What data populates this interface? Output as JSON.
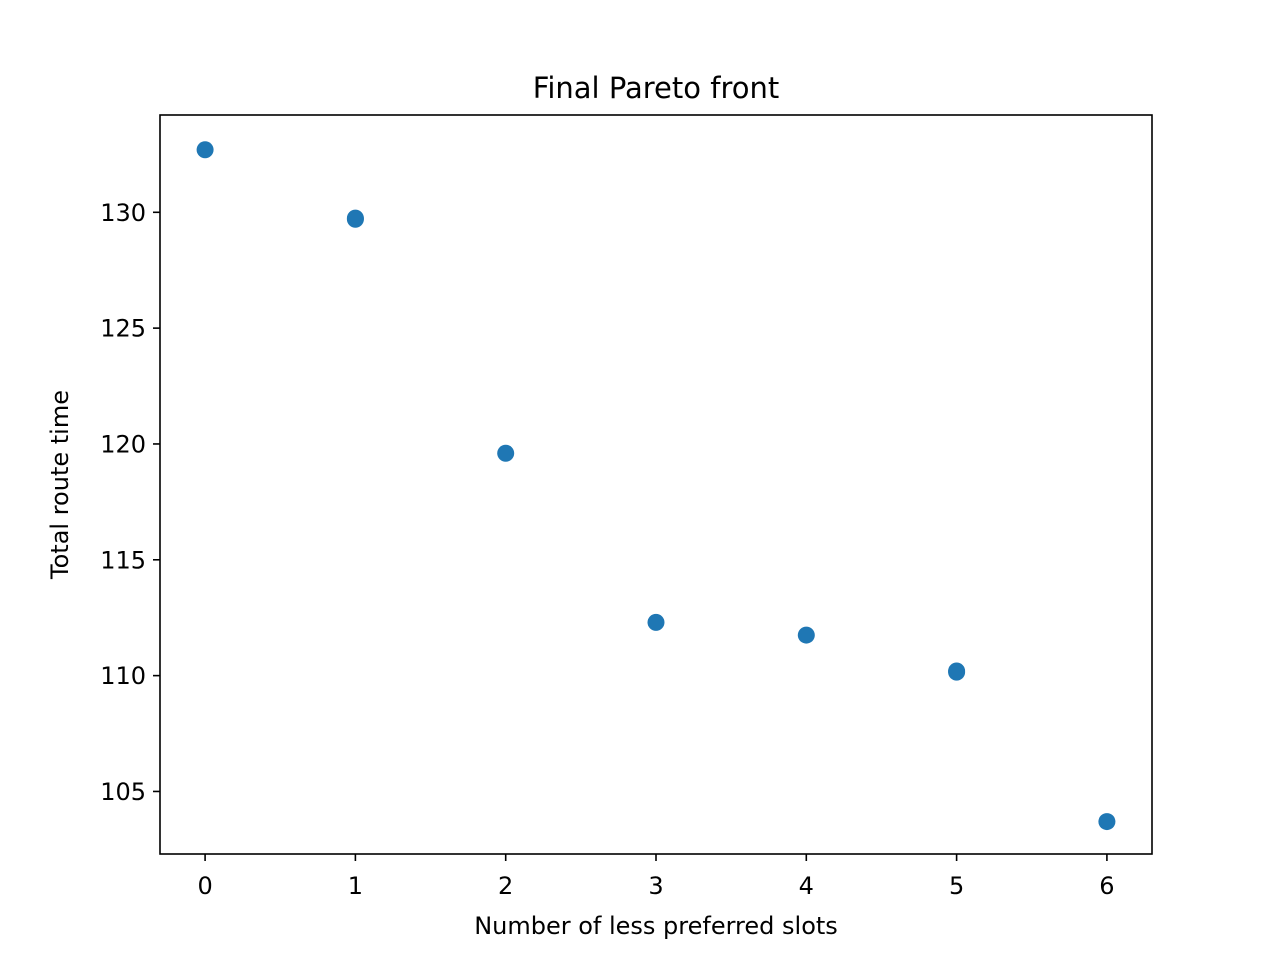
{
  "chart_data": {
    "type": "scatter",
    "title": "Final Pareto front",
    "xlabel": "Number of less preferred slots",
    "ylabel": "Total route time",
    "xlim": [
      -0.3,
      6.3
    ],
    "ylim": [
      102.3,
      134.2
    ],
    "x_ticks": [
      0,
      1,
      2,
      3,
      4,
      5,
      6
    ],
    "y_ticks": [
      105,
      110,
      115,
      120,
      125,
      130
    ],
    "grid": false,
    "legend": "none",
    "series": [
      {
        "color": "#1f77b4",
        "points": [
          {
            "x": 0,
            "y": 132.7
          },
          {
            "x": 1,
            "y": 129.7
          },
          {
            "x": 1,
            "y": 129.75
          },
          {
            "x": 2,
            "y": 119.6
          },
          {
            "x": 3,
            "y": 112.3
          },
          {
            "x": 4,
            "y": 111.75
          },
          {
            "x": 5,
            "y": 110.15
          },
          {
            "x": 5,
            "y": 110.2
          },
          {
            "x": 6,
            "y": 103.7
          }
        ]
      }
    ]
  }
}
